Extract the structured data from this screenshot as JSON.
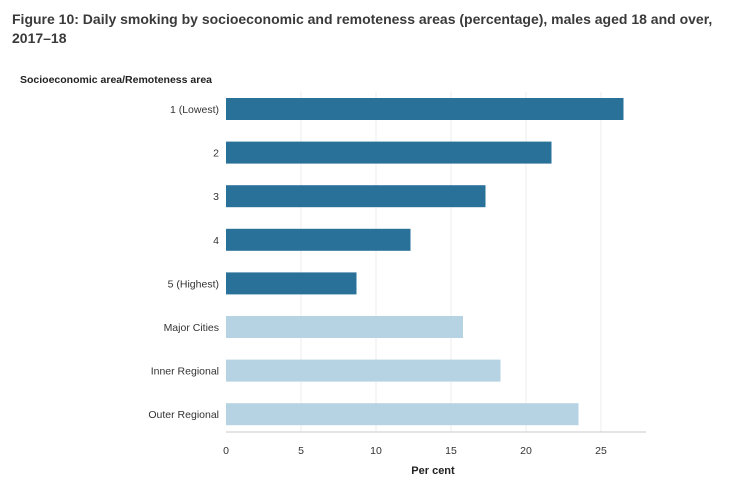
{
  "figure": {
    "title": "Figure 10: Daily smoking by socioeconomic and remoteness areas (percentage), males aged 18 and over, 2017–18"
  },
  "chart_data": {
    "type": "bar",
    "orientation": "horizontal",
    "title": "Figure 10: Daily smoking by socioeconomic and remoteness areas (percentage), males aged 18 and over, 2017–18",
    "ylabel": "Socioeconomic area/Remoteness area",
    "xlabel": "Per cent",
    "categories": [
      "1 (Lowest)",
      "2",
      "3",
      "4",
      "5 (Highest)",
      "Major Cities",
      "Inner Regional",
      "Outer Regional"
    ],
    "values": [
      26.5,
      21.7,
      17.3,
      12.3,
      8.7,
      15.8,
      18.3,
      23.5
    ],
    "bar_colors": [
      "#2a7199",
      "#2a7199",
      "#2a7199",
      "#2a7199",
      "#2a7199",
      "#b6d3e3",
      "#b6d3e3",
      "#b6d3e3"
    ],
    "xlim": [
      0,
      28
    ],
    "xticks": [
      0,
      5,
      10,
      15,
      20,
      25
    ],
    "grid": true,
    "colors": {
      "dark": "#2a7199",
      "light": "#b6d3e3",
      "grid": "#eeeeee"
    }
  }
}
